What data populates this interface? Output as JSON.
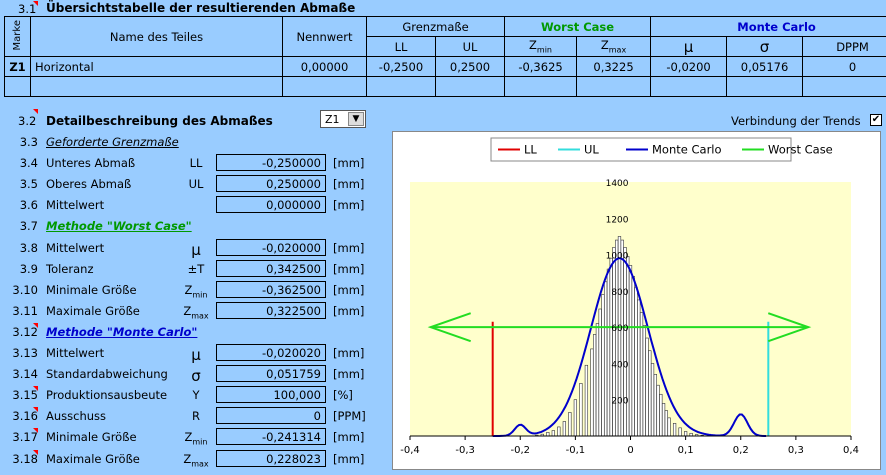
{
  "overview": {
    "section_num": "3.1",
    "title": "Übersichtstabelle der resultierenden Abmaße",
    "marke_label": "Marke",
    "col_name": "Name des Teiles",
    "col_nennwert": "Nennwert",
    "grenzmasse_label": "Grenzmaße",
    "ll_label": "LL",
    "ul_label": "UL",
    "worst_case_label": "Worst Case",
    "zmin_main": "Z",
    "zmin_sub": "min",
    "zmax_main": "Z",
    "zmax_sub": "max",
    "monte_carlo_label": "Monte Carlo",
    "mu_label": "μ",
    "sigma_label": "σ",
    "dppm_label": "DPPM",
    "row": {
      "marke": "Z1",
      "name": "Horizontal",
      "nennwert": "0,00000",
      "ll": "-0,2500",
      "ul": "0,2500",
      "zmin": "-0,3625",
      "zmax": "0,3225",
      "mu": "-0,0200",
      "sigma": "0,05176",
      "dppm": "0"
    }
  },
  "detail": {
    "section_num": "3.2",
    "title": "Detailbeschreibung des Abmaßes",
    "dropdown_value": "Z1",
    "trend_label": "Verbindung der Trends",
    "trend_checked": true,
    "rows": [
      {
        "num": "3.3",
        "name": "Geforderte Grenzmaße",
        "kind": "subtitle"
      },
      {
        "num": "3.4",
        "name": "Unteres Abmaß",
        "sym": "LL",
        "value": "-0,250000",
        "unit": "[mm]"
      },
      {
        "num": "3.5",
        "name": "Oberes Abmaß",
        "sym": "UL",
        "value": "0,250000",
        "unit": "[mm]"
      },
      {
        "num": "3.6",
        "name": "Mittelwert",
        "sym": "",
        "value": "0,000000",
        "unit": "[mm]"
      },
      {
        "num": "3.7",
        "name": "Methode \"Worst Case\"",
        "kind": "wc"
      },
      {
        "num": "3.8",
        "name": "Mittelwert",
        "sym": "μ",
        "value": "-0,020000",
        "unit": "[mm]"
      },
      {
        "num": "3.9",
        "name": "Toleranz",
        "sym": "±T",
        "value": "0,342500",
        "unit": "[mm]"
      },
      {
        "num": "3.10",
        "name": "Minimale Größe",
        "sym": "Zmin",
        "value": "-0,362500",
        "unit": "[mm]"
      },
      {
        "num": "3.11",
        "name": "Maximale Größe",
        "sym": "Zmax",
        "value": "0,322500",
        "unit": "[mm]"
      },
      {
        "num": "3.12",
        "name": "Methode \"Monte Carlo\"",
        "kind": "mc"
      },
      {
        "num": "3.13",
        "name": "Mittelwert",
        "sym": "μ",
        "value": "-0,020020",
        "unit": "[mm]"
      },
      {
        "num": "3.14",
        "name": "Standardabweichung",
        "sym": "σ",
        "value": "0,051759",
        "unit": "[mm]"
      },
      {
        "num": "3.15",
        "name": "Produktionsausbeute",
        "sym": "Y",
        "value": "100,000",
        "unit": "[%]"
      },
      {
        "num": "3.16",
        "name": "Ausschuss",
        "sym": "R",
        "value": "0",
        "unit": "[PPM]"
      },
      {
        "num": "3.17",
        "name": "Minimale Größe",
        "sym": "Zmin",
        "value": "-0,241314",
        "unit": "[mm]"
      },
      {
        "num": "3.18",
        "name": "Maximale Größe",
        "sym": "Zmax",
        "value": "0,228023",
        "unit": "[mm]"
      }
    ]
  },
  "chart_data": {
    "type": "bar",
    "legend": [
      {
        "name": "LL",
        "color": "#e00000"
      },
      {
        "name": "UL",
        "color": "#33dddd"
      },
      {
        "name": "Monte Carlo",
        "color": "#0000cc"
      },
      {
        "name": "Worst Case",
        "color": "#22dd22"
      }
    ],
    "legend_position": "top",
    "xlim": [
      -0.4,
      0.4
    ],
    "ylim": [
      0,
      1400
    ],
    "xticks": [
      "-0,4",
      "-0,3",
      "-0,2",
      "-0,1",
      "0",
      "0,1",
      "0,2",
      "0,3",
      "0,4"
    ],
    "yticks": [
      "200",
      "400",
      "600",
      "800",
      "1000",
      "1200",
      "1400"
    ],
    "ll": -0.25,
    "ul": 0.25,
    "worst_case": {
      "min": -0.3625,
      "max": 0.3225,
      "y": 600
    },
    "mu": -0.02,
    "sigma": 0.05176,
    "curve_peak": 980,
    "histogram_x": [
      -0.17,
      -0.16,
      -0.15,
      -0.14,
      -0.13,
      -0.12,
      -0.11,
      -0.1,
      -0.09,
      -0.08,
      -0.07,
      -0.065,
      -0.06,
      -0.055,
      -0.05,
      -0.045,
      -0.04,
      -0.035,
      -0.03,
      -0.025,
      -0.02,
      -0.015,
      -0.01,
      -0.005,
      0.0,
      0.005,
      0.01,
      0.015,
      0.02,
      0.025,
      0.03,
      0.035,
      0.04,
      0.045,
      0.05,
      0.055,
      0.06,
      0.065,
      0.07,
      0.08,
      0.09,
      0.1,
      0.11,
      0.12,
      0.13
    ],
    "histogram_y": [
      5,
      10,
      20,
      30,
      50,
      80,
      130,
      200,
      290,
      390,
      480,
      560,
      620,
      700,
      780,
      850,
      920,
      980,
      1040,
      1080,
      1100,
      1080,
      1040,
      990,
      940,
      880,
      820,
      750,
      680,
      610,
      540,
      470,
      400,
      340,
      280,
      230,
      180,
      140,
      100,
      70,
      45,
      25,
      15,
      8,
      4
    ],
    "grid": false
  }
}
